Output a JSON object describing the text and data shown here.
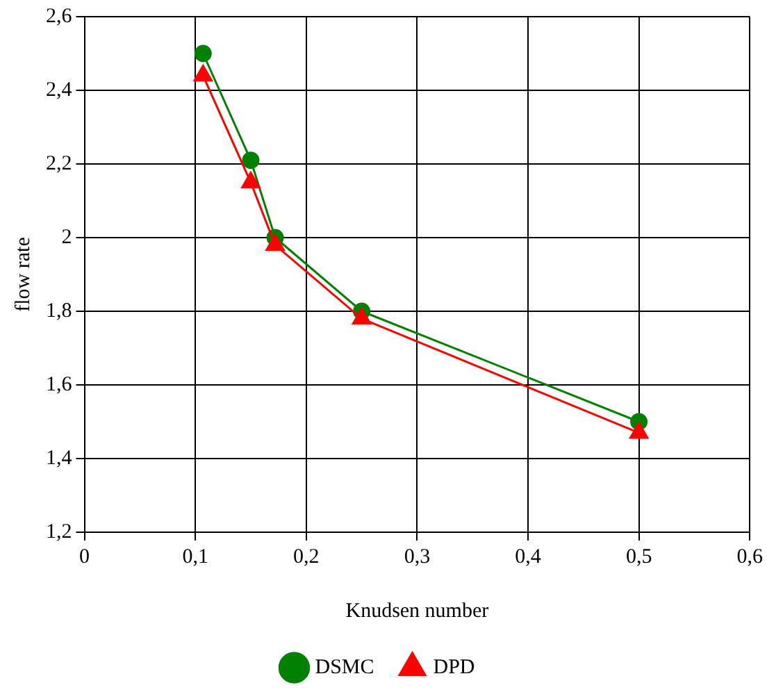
{
  "chart_data": {
    "type": "line",
    "xlabel": "Knudsen number",
    "ylabel": "flow rate",
    "x": [
      0.107,
      0.15,
      0.172,
      0.25,
      0.5
    ],
    "series": [
      {
        "name": "DSMC",
        "color": "#008000",
        "marker": "circle",
        "values": [
          2.5,
          2.21,
          2.0,
          1.8,
          1.5
        ]
      },
      {
        "name": "DPD",
        "color": "#ff0000",
        "marker": "triangle",
        "values": [
          2.44,
          2.15,
          1.98,
          1.78,
          1.47
        ]
      }
    ],
    "xlim": [
      0,
      0.6
    ],
    "xticks": [
      0,
      {
        "value": 0.1,
        "label": "0,1"
      },
      {
        "value": 0.2,
        "label": "0,2"
      },
      {
        "value": 0.3,
        "label": "0,3"
      },
      {
        "value": 0.4,
        "label": "0,4"
      },
      {
        "value": 0.5,
        "label": "0,5"
      },
      {
        "value": 0.6,
        "label": "0,6"
      }
    ],
    "ylim": [
      1.2,
      2.6
    ],
    "yticks": [
      {
        "value": 1.2,
        "label": "1,2"
      },
      {
        "value": 1.4,
        "label": "1,4"
      },
      {
        "value": 1.6,
        "label": "1,6"
      },
      {
        "value": 1.8,
        "label": "1,8"
      },
      2,
      {
        "value": 2.2,
        "label": "2,2"
      },
      {
        "value": 2.4,
        "label": "2,4"
      },
      {
        "value": 2.6,
        "label": "2,6"
      }
    ],
    "grid": true,
    "legend": "bottom",
    "line_style": "solid"
  }
}
